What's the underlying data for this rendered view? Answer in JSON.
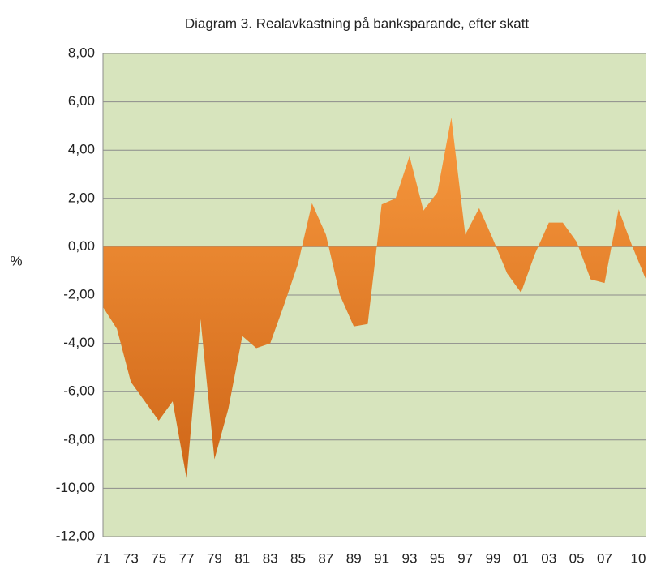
{
  "chart_data": {
    "type": "area",
    "title": "Diagram 3. Realavkastning på banksparande, efter skatt",
    "ylabel": "%",
    "categories": [
      "71",
      null,
      "73",
      null,
      "75",
      null,
      "77",
      null,
      "79",
      null,
      "81",
      null,
      "83",
      null,
      "85",
      null,
      "87",
      null,
      "89",
      null,
      "91",
      null,
      "93",
      null,
      "95",
      null,
      "97",
      null,
      "99",
      null,
      "01",
      null,
      "03",
      null,
      "05",
      null,
      "07",
      null,
      null,
      "10"
    ],
    "values": [
      -2.5,
      -3.4,
      -5.6,
      -6.4,
      -7.2,
      -6.4,
      -9.6,
      -3.0,
      -8.8,
      -6.7,
      -3.7,
      -4.2,
      -4.0,
      -2.4,
      -0.7,
      1.8,
      0.5,
      -2.0,
      -3.3,
      -3.2,
      1.75,
      2.0,
      3.75,
      1.5,
      2.25,
      5.35,
      0.5,
      1.6,
      0.3,
      -1.1,
      -1.9,
      -0.3,
      1.0,
      1.0,
      0.2,
      -1.35,
      -1.5,
      1.55,
      0.0,
      -1.4
    ],
    "color": "#f28c30",
    "plot_background": "#d7e4bd",
    "ylim": [
      -12,
      8
    ],
    "yticks": [
      {
        "value": -12,
        "label": "-12,00"
      },
      {
        "value": -10,
        "label": "-10,00"
      },
      {
        "value": -8,
        "label": "-8,00"
      },
      {
        "value": -6,
        "label": "-6,00"
      },
      {
        "value": -4,
        "label": "-4,00"
      },
      {
        "value": -2,
        "label": "-2,00"
      },
      {
        "value": 0,
        "label": "0,00"
      },
      {
        "value": 2,
        "label": "2,00"
      },
      {
        "value": 4,
        "label": "4,00"
      },
      {
        "value": 6,
        "label": "6,00"
      },
      {
        "value": 8,
        "label": "8,00"
      }
    ],
    "grid": true
  }
}
